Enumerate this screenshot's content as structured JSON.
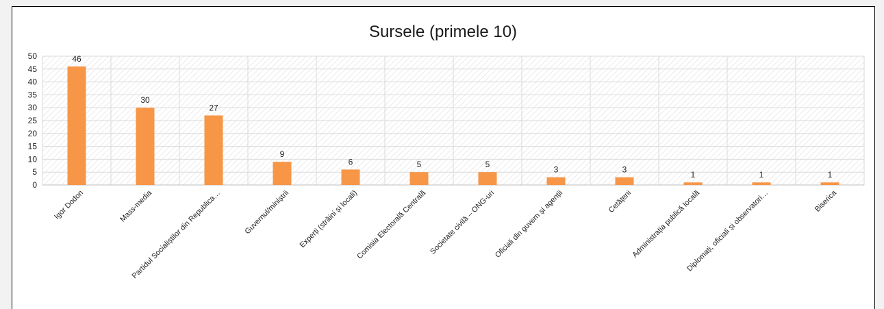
{
  "chart_data": {
    "type": "bar",
    "title": "Sursele (primele 10)",
    "xlabel": "",
    "ylabel": "",
    "ylim": [
      0,
      50
    ],
    "yticks": [
      0,
      5,
      10,
      15,
      20,
      25,
      30,
      35,
      40,
      45,
      50
    ],
    "grid": true,
    "legend": "none",
    "categories": [
      "Igor Dodon",
      "Mass-media",
      "Partidul Socialiștilor din Republica…",
      "Guvernul/miniștrii",
      "Experți (străini și locali)",
      "Comisia Electorală Centrală",
      "Societate civilă – ONG-uri",
      "Oficiali din guvern și agenții",
      "Cetățeni",
      "Administrația publică locală",
      "Diplomați, oficiali și observatori…",
      "Biserica"
    ],
    "values": [
      46,
      30,
      27,
      9,
      6,
      5,
      5,
      3,
      3,
      1,
      1,
      1
    ],
    "colors": {
      "bar": "#f79646",
      "grid": "#d9d9d9",
      "hatch": "#e3e3e3",
      "axis": "#bfbfbf"
    }
  }
}
